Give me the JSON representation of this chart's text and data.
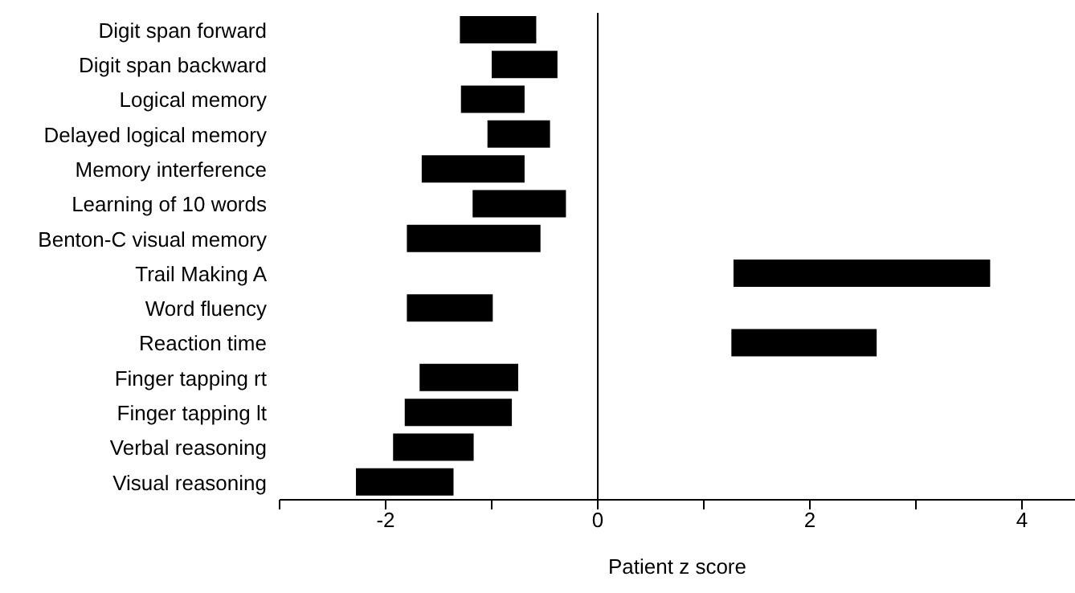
{
  "chart_data": {
    "type": "bar",
    "orientation": "horizontal",
    "xlabel": "Patient z score",
    "categories": [
      "Digit span forward",
      "Digit span backward",
      "Logical memory",
      "Delayed logical memory",
      "Memory interference",
      "Learning of 10 words",
      "Benton-C visual memory",
      "Trail Making A",
      "Word fluency",
      "Reaction time",
      "Finger tapping rt",
      "Finger tapping lt",
      "Verbal reasoning",
      "Visual reasoning"
    ],
    "base": [
      -1.3,
      -1.0,
      -1.29,
      -1.04,
      -1.66,
      -1.18,
      -1.8,
      1.28,
      -1.8,
      1.26,
      -1.68,
      -1.82,
      -1.93,
      -2.28
    ],
    "values": [
      0.72,
      0.62,
      0.6,
      0.59,
      0.97,
      0.88,
      1.26,
      2.42,
      0.81,
      1.37,
      0.93,
      1.01,
      0.76,
      0.92
    ],
    "color": "#000000",
    "xlim": [
      -3,
      4.5
    ],
    "xticks": [
      {
        "value": -3,
        "label": null
      },
      -2,
      {
        "value": -1,
        "label": null
      },
      0,
      {
        "value": 1,
        "label": null
      },
      2,
      {
        "value": 3,
        "label": null
      },
      4
    ],
    "ref_lines": [
      {
        "axis": "x",
        "value": 0,
        "color": "#000000"
      }
    ],
    "grid": false,
    "legend": false
  }
}
